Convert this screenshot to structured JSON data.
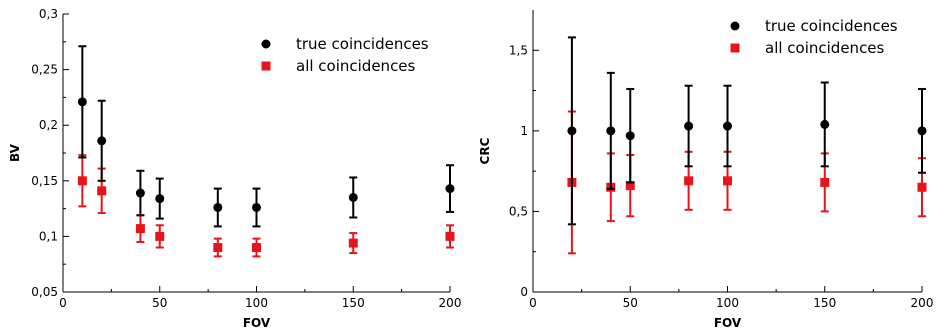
{
  "chart_data": [
    {
      "type": "scatter",
      "xlabel": "FOV",
      "ylabel": "BV",
      "xlim": [
        0,
        200
      ],
      "ylim": [
        0.05,
        0.3
      ],
      "x_ticks": [
        0,
        50,
        100,
        150,
        200
      ],
      "x_tick_labels": [
        "0",
        "50",
        "100",
        "150",
        "200"
      ],
      "y_ticks": [
        0.05,
        0.1,
        0.15,
        0.2,
        0.25,
        0.3
      ],
      "y_tick_labels": [
        "0,05",
        "0,1",
        "0,15",
        "0,2",
        "0,25",
        "0,3"
      ],
      "legend_position": "top-right",
      "grid": false,
      "series": [
        {
          "name": "true coincidences",
          "color": "#000000",
          "marker": "circle",
          "x": [
            10,
            20,
            40,
            50,
            80,
            100,
            150,
            200
          ],
          "y": [
            0.221,
            0.186,
            0.139,
            0.134,
            0.126,
            0.126,
            0.135,
            0.143
          ],
          "err": [
            0.05,
            0.036,
            0.02,
            0.018,
            0.017,
            0.017,
            0.018,
            0.021
          ]
        },
        {
          "name": "all coincidences",
          "color": "#e8141b",
          "marker": "square",
          "x": [
            10,
            20,
            40,
            50,
            80,
            100,
            150,
            200
          ],
          "y": [
            0.15,
            0.141,
            0.107,
            0.1,
            0.09,
            0.09,
            0.094,
            0.1
          ],
          "err": [
            0.023,
            0.02,
            0.012,
            0.01,
            0.008,
            0.008,
            0.009,
            0.01
          ]
        }
      ]
    },
    {
      "type": "scatter",
      "xlabel": "FOV",
      "ylabel": "CRC",
      "xlim": [
        0,
        200
      ],
      "ylim": [
        0,
        1.75
      ],
      "x_ticks": [
        0,
        50,
        100,
        150,
        200
      ],
      "x_tick_labels": [
        "0",
        "50",
        "100",
        "150",
        "200"
      ],
      "y_ticks": [
        0,
        0.5,
        1,
        1.5
      ],
      "y_tick_labels": [
        "0",
        "0,5",
        "1",
        "1,5"
      ],
      "legend_position": "top-right",
      "grid": false,
      "series": [
        {
          "name": "true coincidences",
          "color": "#000000",
          "marker": "circle",
          "x": [
            20,
            40,
            50,
            80,
            100,
            150,
            200
          ],
          "y": [
            1.0,
            1.0,
            0.97,
            1.03,
            1.03,
            1.04,
            1.0
          ],
          "err": [
            0.58,
            0.36,
            0.29,
            0.25,
            0.25,
            0.26,
            0.26
          ]
        },
        {
          "name": "all coincidences",
          "color": "#e8141b",
          "marker": "square",
          "x": [
            20,
            40,
            50,
            80,
            100,
            150,
            200
          ],
          "y": [
            0.68,
            0.65,
            0.66,
            0.69,
            0.69,
            0.68,
            0.65
          ],
          "err": [
            0.44,
            0.21,
            0.19,
            0.18,
            0.18,
            0.18,
            0.18
          ]
        }
      ]
    }
  ]
}
